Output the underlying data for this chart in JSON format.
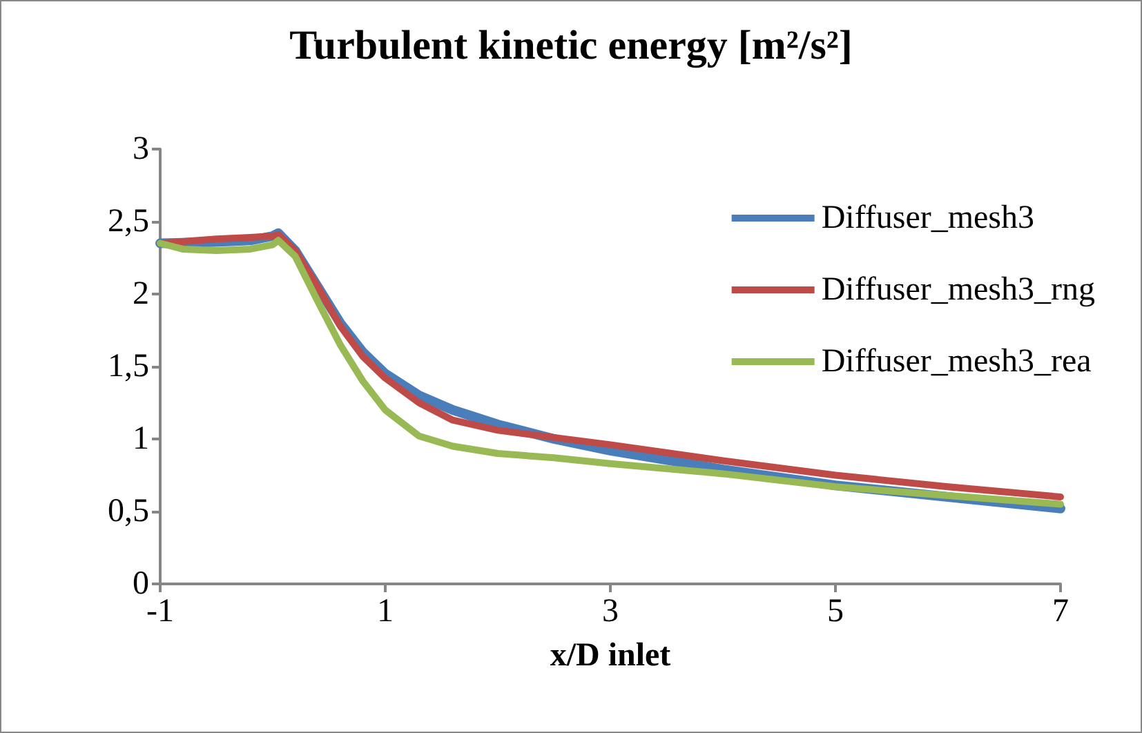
{
  "chart_data": {
    "type": "line",
    "title": "Turbulent kinetic energy [m²/s²]",
    "xlabel": "x/D inlet",
    "xlim": [
      -1,
      7
    ],
    "xticks": [
      -1,
      1,
      3,
      5,
      7
    ],
    "ylim": [
      0,
      3
    ],
    "yticks": [
      0,
      {
        "value": 0.5,
        "label": "0,5"
      },
      1,
      {
        "value": 1.5,
        "label": "1,5"
      },
      2,
      {
        "value": 2.5,
        "label": "2,5"
      },
      3
    ],
    "grid": false,
    "legend": "top right",
    "marker": "none",
    "line_style": "solid",
    "series": [
      {
        "name": "Diffuser_mesh3",
        "color": "#4a7ebb",
        "x": [
          -1,
          -0.5,
          -0.2,
          0,
          0.05,
          0.2,
          0.4,
          0.6,
          0.8,
          1,
          1.3,
          1.6,
          2,
          2.5,
          3,
          4,
          5,
          6,
          7
        ],
        "values": [
          2.35,
          2.36,
          2.37,
          2.4,
          2.42,
          2.3,
          2.05,
          1.8,
          1.6,
          1.45,
          1.3,
          1.2,
          1.1,
          1.0,
          0.92,
          0.79,
          0.68,
          0.6,
          0.52
        ]
      },
      {
        "name": "Diffuser_mesh3_rng",
        "color": "#be4b48",
        "x": [
          -1,
          -0.5,
          -0.2,
          0,
          0.05,
          0.2,
          0.4,
          0.6,
          0.8,
          1,
          1.3,
          1.6,
          2,
          2.5,
          3,
          4,
          5,
          6,
          7
        ],
        "values": [
          2.35,
          2.38,
          2.39,
          2.4,
          2.41,
          2.3,
          2.05,
          1.78,
          1.57,
          1.42,
          1.25,
          1.13,
          1.06,
          1.01,
          0.96,
          0.85,
          0.75,
          0.67,
          0.6
        ]
      },
      {
        "name": "Diffuser_mesh3_rea",
        "color": "#98b954",
        "x": [
          -1,
          -0.8,
          -0.5,
          -0.2,
          0,
          0.05,
          0.2,
          0.4,
          0.6,
          0.8,
          1,
          1.3,
          1.6,
          2,
          2.5,
          3,
          4,
          5,
          6,
          7
        ],
        "values": [
          2.35,
          2.31,
          2.3,
          2.31,
          2.34,
          2.37,
          2.26,
          1.95,
          1.65,
          1.4,
          1.2,
          1.02,
          0.95,
          0.9,
          0.87,
          0.83,
          0.76,
          0.67,
          0.61,
          0.55
        ]
      }
    ]
  }
}
